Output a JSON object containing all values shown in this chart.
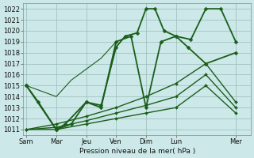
{
  "background_color": "#cce8e8",
  "grid_color": "#99bbbb",
  "line_color": "#1a5e1a",
  "marker_color": "#1a5e1a",
  "xlabel": "Pression niveau de la mer( hPa )",
  "ylim": [
    1010.5,
    1022.5
  ],
  "yticks": [
    1011,
    1012,
    1013,
    1014,
    1015,
    1016,
    1017,
    1018,
    1019,
    1020,
    1021,
    1022
  ],
  "xtick_labels": [
    "Sam",
    "Mar",
    "Jeu",
    "Ven",
    "Dim",
    "Lun",
    "Mer"
  ],
  "xtick_positions": [
    0,
    1,
    2,
    3,
    4,
    5,
    7
  ],
  "xlim": [
    -0.1,
    7.5
  ],
  "series": [
    {
      "x": [
        0,
        0.4,
        1,
        1.3,
        2,
        2.5,
        3,
        3.3,
        3.7,
        4,
        4.3,
        4.6,
        5,
        5.4,
        6,
        7
      ],
      "y": [
        1015,
        1013.5,
        1011,
        1011.5,
        1013.5,
        1013.2,
        1018.5,
        1019.5,
        1019.8,
        1022,
        1022,
        1020,
        1019.5,
        1018.5,
        1017,
        1018
      ],
      "lw": 1.3,
      "ms": 2.5
    },
    {
      "x": [
        0,
        1,
        1.5,
        2,
        2.5,
        3,
        3.5,
        4,
        4.5,
        5,
        5.5,
        6,
        6.5,
        7
      ],
      "y": [
        1015,
        1011,
        1011.5,
        1013.5,
        1013,
        1019,
        1019.5,
        1013,
        1019,
        1019.5,
        1019.2,
        1022,
        1022,
        1019
      ],
      "lw": 1.3,
      "ms": 2.5
    },
    {
      "x": [
        0,
        1,
        2,
        3,
        4,
        5,
        6,
        7
      ],
      "y": [
        1011,
        1011,
        1011.5,
        1012,
        1012.5,
        1013,
        1015,
        1012.5
      ],
      "lw": 1.0,
      "ms": 2.0
    },
    {
      "x": [
        0,
        1,
        2,
        3,
        4,
        5,
        6,
        7
      ],
      "y": [
        1011,
        1011.2,
        1011.8,
        1012.5,
        1013.2,
        1014,
        1016,
        1013
      ],
      "lw": 1.0,
      "ms": 2.0
    },
    {
      "x": [
        0,
        1,
        2,
        3,
        4,
        5,
        6,
        7
      ],
      "y": [
        1011,
        1011.5,
        1012.2,
        1013.0,
        1014.0,
        1015.2,
        1017,
        1013.5
      ],
      "lw": 1.0,
      "ms": 2.0
    },
    {
      "x": [
        0,
        0.5,
        1,
        1.5,
        2,
        2.5,
        3
      ],
      "y": [
        1015,
        1014.5,
        1014,
        1015.5,
        1016.5,
        1017.5,
        1019
      ],
      "lw": 0.8,
      "ms": 0.0
    }
  ]
}
